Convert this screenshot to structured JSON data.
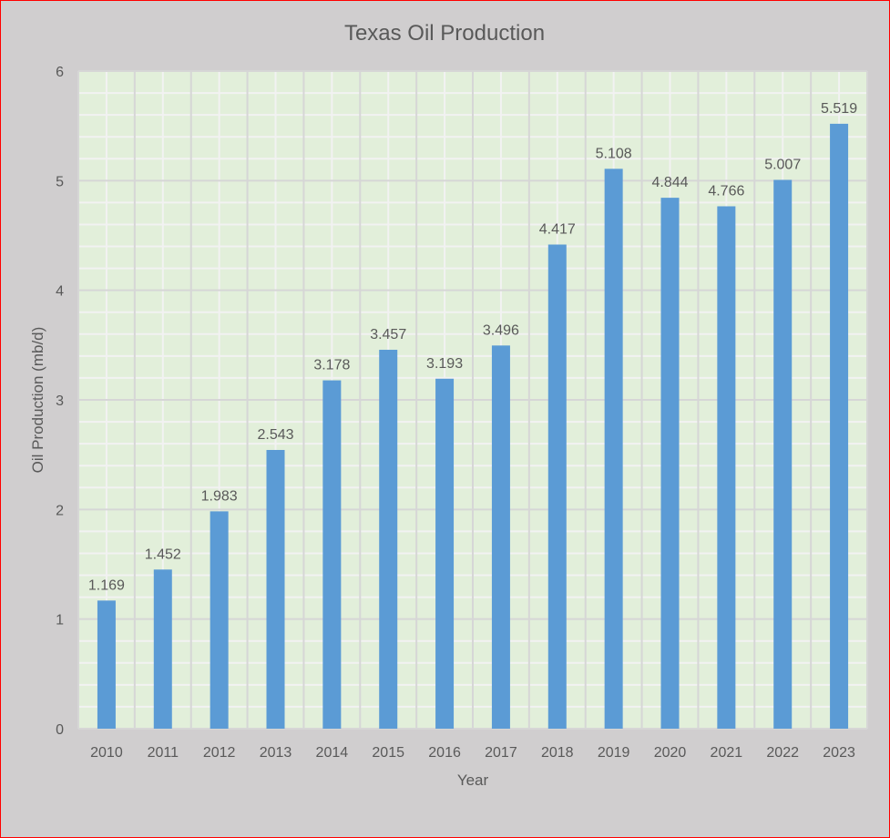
{
  "chart_data": {
    "type": "bar",
    "title": "Texas Oil Production",
    "xlabel": "Year",
    "ylabel": "Oil Production (mb/d)",
    "categories": [
      "2010",
      "2011",
      "2012",
      "2013",
      "2014",
      "2015",
      "2016",
      "2017",
      "2018",
      "2019",
      "2020",
      "2021",
      "2022",
      "2023"
    ],
    "values": [
      1.169,
      1.452,
      1.983,
      2.543,
      3.178,
      3.457,
      3.193,
      3.496,
      4.417,
      5.108,
      4.844,
      4.766,
      5.007,
      5.519
    ],
    "ylim": [
      0,
      6
    ],
    "yticks": [
      "0",
      "1",
      "2",
      "3",
      "4",
      "5",
      "6"
    ],
    "grid": true,
    "legend": "none",
    "colors": {
      "bar": "#5b9bd5",
      "plot_bg": "#e2efda",
      "page_bg": "#d0cecf",
      "border": "#ff0000"
    }
  }
}
